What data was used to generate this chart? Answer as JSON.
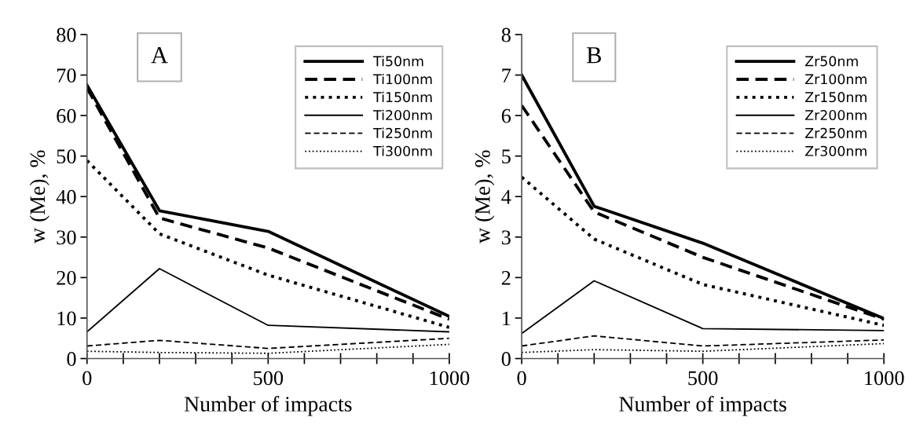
{
  "chart_data": [
    {
      "type": "line",
      "xlabel": "Number of impacts",
      "ylabel": "w (Me), %",
      "annotations": [
        "A"
      ],
      "x": [
        0,
        200,
        500,
        1000
      ],
      "xlim": [
        0,
        1000
      ],
      "xticks": [
        0,
        {
          "value": 100,
          "label": null
        },
        {
          "value": 200,
          "label": null
        },
        {
          "value": 300,
          "label": null
        },
        {
          "value": 400,
          "label": null
        },
        500,
        {
          "value": 600,
          "label": null
        },
        {
          "value": 700,
          "label": null
        },
        {
          "value": 800,
          "label": null
        },
        {
          "value": 900,
          "label": null
        },
        1000
      ],
      "ylim": [
        0,
        80
      ],
      "yticks": [
        0,
        10,
        20,
        30,
        40,
        50,
        60,
        70,
        80
      ],
      "grid": false,
      "legend": "top right",
      "series": [
        {
          "name": "Ti50nm",
          "color": "#000000",
          "line_style": "solid",
          "values": [
            67.5,
            36.5,
            31.4,
            10.4
          ]
        },
        {
          "name": "Ti100nm",
          "color": "#000000",
          "line_style": "dashed",
          "values": [
            66.8,
            34.7,
            27.3,
            9.7
          ]
        },
        {
          "name": "Ti150nm",
          "color": "#000000",
          "line_style": "dotted",
          "values": [
            48.9,
            30.8,
            20.6,
            7.7
          ]
        },
        {
          "name": "Ti200nm",
          "color": "#000000",
          "line_style": "solid",
          "values": [
            6.6,
            22.2,
            8.2,
            6.6
          ]
        },
        {
          "name": "Ti250nm",
          "color": "#000000",
          "line_style": "dashed",
          "values": [
            3.1,
            4.5,
            2.5,
            5.0
          ]
        },
        {
          "name": "Ti300nm",
          "color": "#000000",
          "line_style": "dotted",
          "values": [
            1.8,
            1.5,
            1.3,
            3.5
          ]
        }
      ]
    },
    {
      "type": "line",
      "xlabel": "Number of impacts",
      "ylabel": "w (Me), %",
      "annotations": [
        "B"
      ],
      "x": [
        0,
        200,
        500,
        1000
      ],
      "xlim": [
        0,
        1000
      ],
      "xticks": [
        0,
        {
          "value": 100,
          "label": null
        },
        {
          "value": 200,
          "label": null
        },
        {
          "value": 300,
          "label": null
        },
        {
          "value": 400,
          "label": null
        },
        500,
        {
          "value": 600,
          "label": null
        },
        {
          "value": 700,
          "label": null
        },
        {
          "value": 800,
          "label": null
        },
        {
          "value": 900,
          "label": null
        },
        1000
      ],
      "ylim": [
        0,
        8
      ],
      "yticks": [
        0,
        1,
        2,
        3,
        4,
        5,
        6,
        7,
        8
      ],
      "grid": false,
      "legend": "top right",
      "series": [
        {
          "name": "Zr50nm",
          "color": "#000000",
          "line_style": "solid",
          "values": [
            7.0,
            3.76,
            2.85,
            0.99
          ]
        },
        {
          "name": "Zr100nm",
          "color": "#000000",
          "line_style": "dashed",
          "values": [
            6.25,
            3.62,
            2.5,
            0.97
          ]
        },
        {
          "name": "Zr150nm",
          "color": "#000000",
          "line_style": "dotted",
          "values": [
            4.48,
            2.95,
            1.83,
            0.82
          ]
        },
        {
          "name": "Zr200nm",
          "color": "#000000",
          "line_style": "solid",
          "values": [
            0.62,
            1.92,
            0.74,
            0.69
          ]
        },
        {
          "name": "Zr250nm",
          "color": "#000000",
          "line_style": "dashed",
          "values": [
            0.31,
            0.56,
            0.31,
            0.46
          ]
        },
        {
          "name": "Zr300nm",
          "color": "#000000",
          "line_style": "dotted",
          "values": [
            0.15,
            0.22,
            0.18,
            0.37
          ]
        }
      ]
    }
  ]
}
